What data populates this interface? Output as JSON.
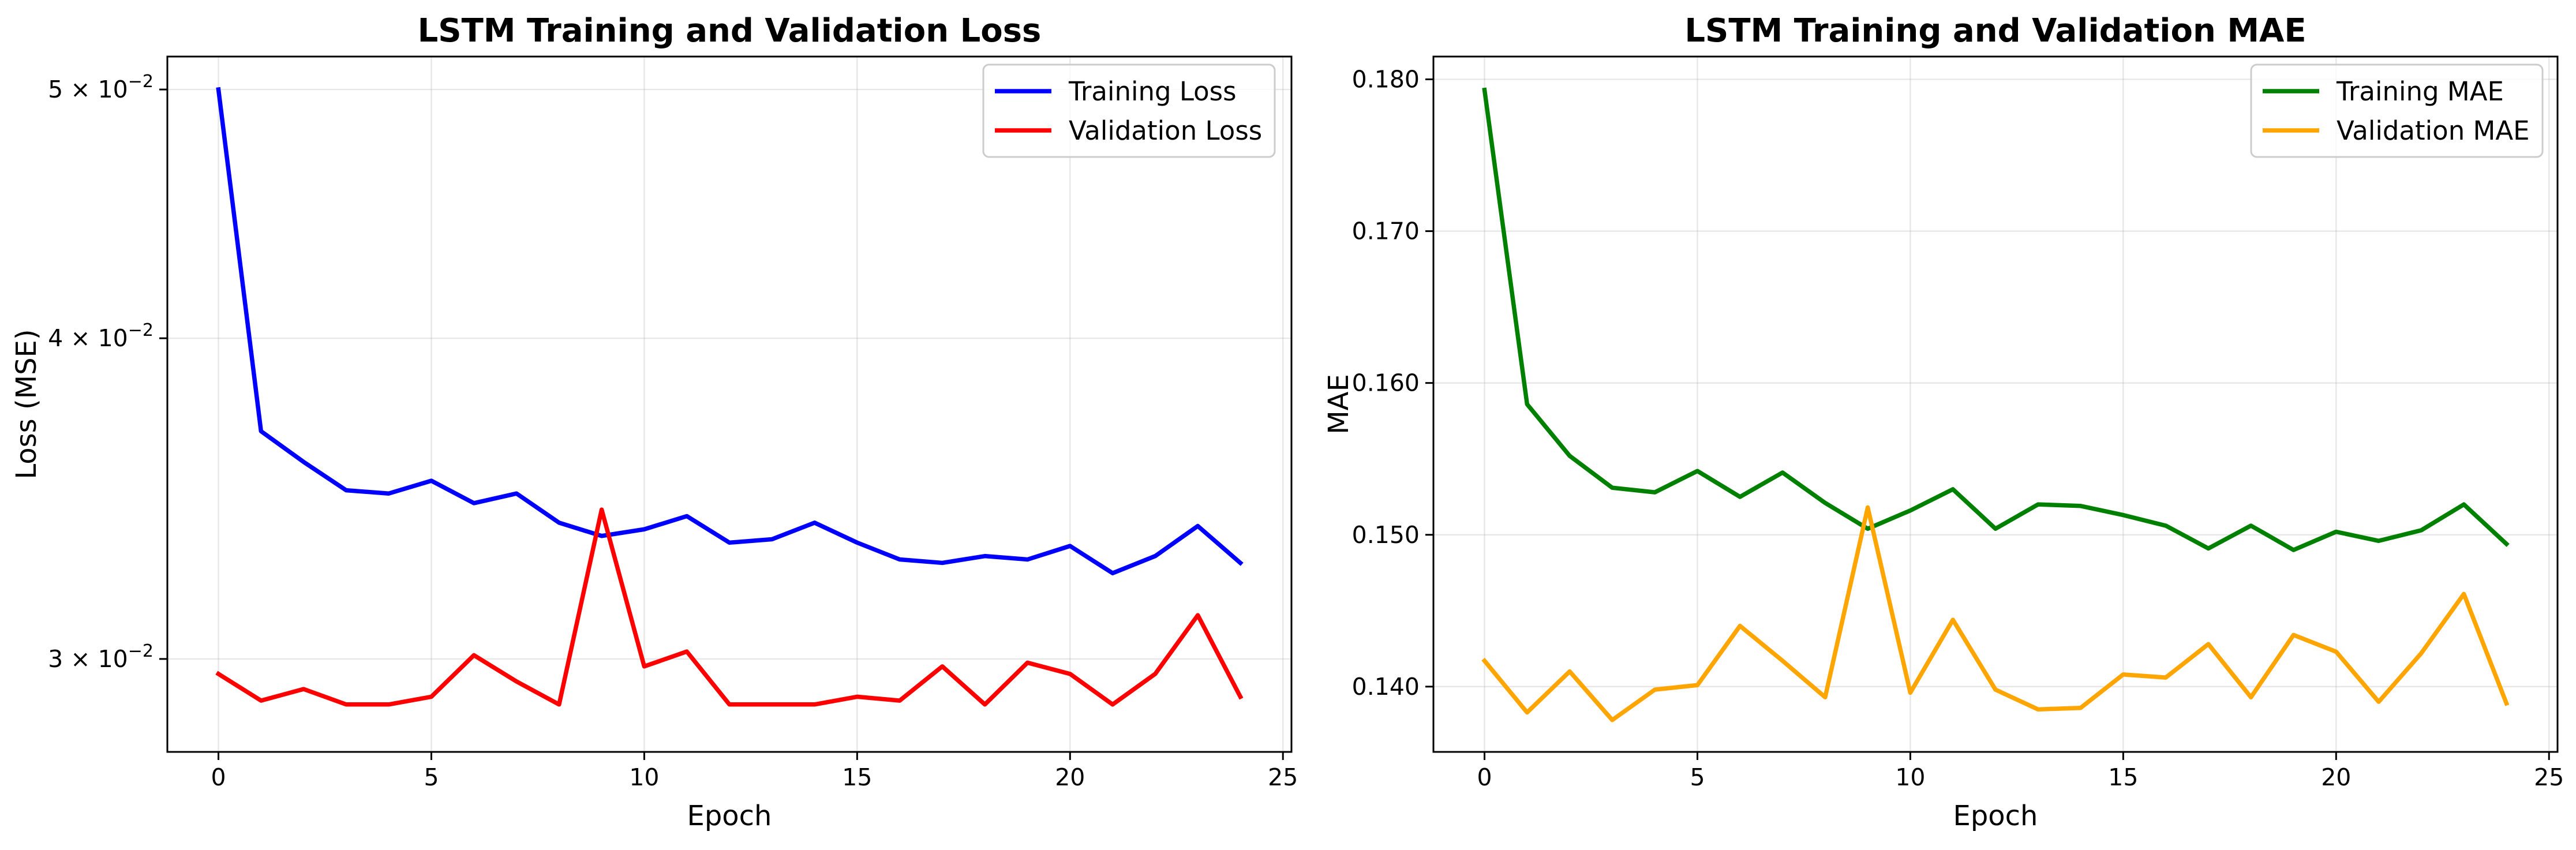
{
  "chart_data": [
    {
      "type": "line",
      "title": "LSTM Training and Validation Loss",
      "xlabel": "Epoch",
      "ylabel": "Loss (MSE)",
      "yscale": "log",
      "xlim": [
        -1.2,
        25.2
      ],
      "ylim": [
        0.0276,
        0.0515
      ],
      "xticks": [
        0,
        5,
        10,
        15,
        20,
        25
      ],
      "yticks": [
        {
          "value": 0.03,
          "mantissa": "3",
          "times": "×",
          "base": "10",
          "exponent": "−2"
        },
        {
          "value": 0.04,
          "mantissa": "4",
          "times": "×",
          "base": "10",
          "exponent": "−2"
        },
        {
          "value": 0.05,
          "mantissa": "5",
          "times": "×",
          "base": "10",
          "exponent": "−2"
        }
      ],
      "grid": true,
      "legend_position": "upper right",
      "x": [
        0,
        1,
        2,
        3,
        4,
        5,
        6,
        7,
        8,
        9,
        10,
        11,
        12,
        13,
        14,
        15,
        16,
        17,
        18,
        19,
        20,
        21,
        22,
        23,
        24
      ],
      "series": [
        {
          "name": "Training Loss",
          "color": "#0000ff",
          "values": [
            0.05,
            0.0368,
            0.0358,
            0.0349,
            0.0348,
            0.0352,
            0.0345,
            0.0348,
            0.0339,
            0.0335,
            0.0337,
            0.0341,
            0.0333,
            0.0334,
            0.0339,
            0.0333,
            0.0328,
            0.0327,
            0.0329,
            0.0328,
            0.0332,
            0.0324,
            0.0329,
            0.0338,
            0.0327
          ]
        },
        {
          "name": "Validation Loss",
          "color": "#ff0000",
          "values": [
            0.0296,
            0.0289,
            0.0292,
            0.0288,
            0.0288,
            0.029,
            0.0301,
            0.0294,
            0.0288,
            0.0343,
            0.0298,
            0.0302,
            0.0288,
            0.0288,
            0.0288,
            0.029,
            0.0289,
            0.0298,
            0.0288,
            0.0299,
            0.0296,
            0.0288,
            0.0296,
            0.0312,
            0.029
          ]
        }
      ]
    },
    {
      "type": "line",
      "title": "LSTM Training and Validation MAE",
      "xlabel": "Epoch",
      "ylabel": "MAE",
      "yscale": "linear",
      "xlim": [
        -1.2,
        25.2
      ],
      "ylim": [
        0.1357,
        0.1815
      ],
      "xticks": [
        0,
        5,
        10,
        15,
        20,
        25
      ],
      "yticks": [
        "0.140",
        "0.150",
        "0.160",
        "0.170",
        "0.180"
      ],
      "grid": true,
      "legend_position": "upper right",
      "x": [
        0,
        1,
        2,
        3,
        4,
        5,
        6,
        7,
        8,
        9,
        10,
        11,
        12,
        13,
        14,
        15,
        16,
        17,
        18,
        19,
        20,
        21,
        22,
        23,
        24
      ],
      "series": [
        {
          "name": "Training MAE",
          "color": "#008000",
          "values": [
            0.1793,
            0.1586,
            0.1552,
            0.1531,
            0.1528,
            0.1542,
            0.1525,
            0.1541,
            0.1521,
            0.1504,
            0.1516,
            0.153,
            0.1504,
            0.152,
            0.1519,
            0.1513,
            0.1506,
            0.1491,
            0.1506,
            0.149,
            0.1502,
            0.1496,
            0.1503,
            0.152,
            0.1494
          ]
        },
        {
          "name": "Validation MAE",
          "color": "#ffa500",
          "values": [
            0.1417,
            0.1383,
            0.141,
            0.1378,
            0.1398,
            0.1401,
            0.144,
            0.1417,
            0.1393,
            0.1518,
            0.1396,
            0.1444,
            0.1398,
            0.1385,
            0.1386,
            0.1408,
            0.1406,
            0.1428,
            0.1393,
            0.1434,
            0.1423,
            0.139,
            0.1422,
            0.1461,
            0.1389
          ]
        }
      ]
    }
  ]
}
